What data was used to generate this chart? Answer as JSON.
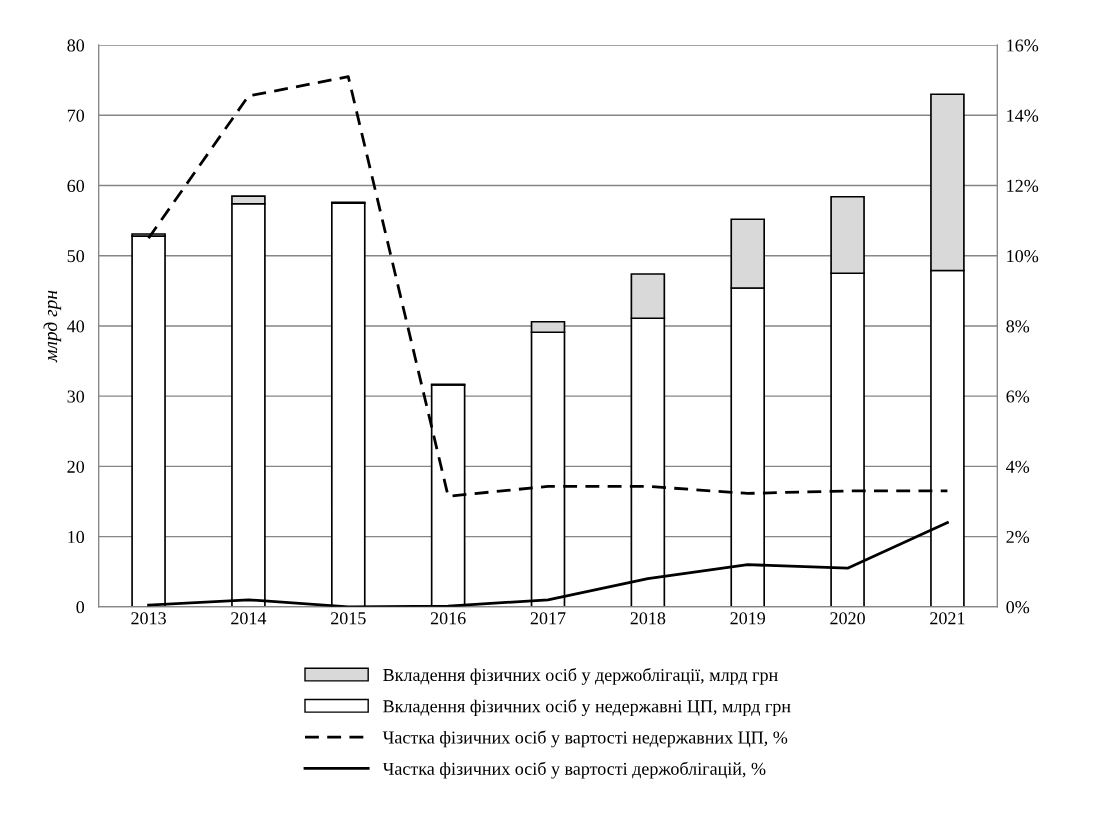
{
  "chart_data": {
    "type": "bar",
    "stacked": true,
    "ylabel": "млрд грн",
    "categories": [
      "2013",
      "2014",
      "2015",
      "2016",
      "2017",
      "2018",
      "2019",
      "2020",
      "2021"
    ],
    "series": [
      {
        "name": "Вкладення фізичних осіб у недержавні ЦП, млрд грн",
        "color": "#ffffff",
        "values": [
          52.8,
          57.4,
          57.5,
          31.6,
          39.1,
          41.1,
          45.4,
          47.5,
          47.9
        ]
      },
      {
        "name": "Вкладення фізичних осіб у держоблігації, млрд грн",
        "color": "#d9d9d9",
        "values": [
          0.3,
          1.1,
          0.1,
          0.1,
          1.5,
          6.3,
          9.8,
          10.9,
          25.1
        ]
      },
      {
        "name": "Частка фізичних осіб у вартості недержавних ЦП, %",
        "type": "line",
        "axis": "y2",
        "color": "#000000",
        "line_style": "dashed",
        "values": [
          10.5,
          14.55,
          15.1,
          3.15,
          3.43,
          3.43,
          3.23,
          3.3,
          3.3
        ]
      },
      {
        "name": "Частка фізичних осіб у вартості держоблігацій, %",
        "type": "line",
        "axis": "y2",
        "color": "#000000",
        "line_style": "solid",
        "values": [
          0.05,
          0.2,
          0.0,
          0.02,
          0.2,
          0.8,
          1.2,
          1.1,
          2.4
        ]
      }
    ],
    "ylim": [
      0,
      80
    ],
    "yticks": [
      0,
      10,
      20,
      30,
      40,
      50,
      60,
      70,
      80
    ],
    "y2lim": [
      0,
      16
    ],
    "y2ticks": [
      {
        "value": 0,
        "label": "0%"
      },
      {
        "value": 2,
        "label": "2%"
      },
      {
        "value": 4,
        "label": "4%"
      },
      {
        "value": 6,
        "label": "6%"
      },
      {
        "value": 8,
        "label": "8%"
      },
      {
        "value": 10,
        "label": "10%"
      },
      {
        "value": 12,
        "label": "12%"
      },
      {
        "value": 14,
        "label": "14%"
      },
      {
        "value": 16,
        "label": "16%"
      }
    ],
    "grid": "y",
    "legend": "bottom"
  }
}
